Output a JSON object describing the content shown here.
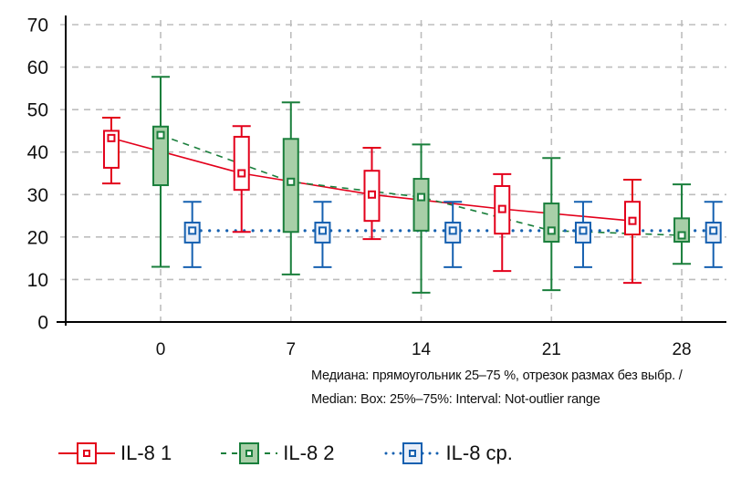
{
  "chart_data": {
    "type": "boxplot",
    "title": "",
    "xlabel": "",
    "ylabel": "",
    "ylim": [
      0,
      70
    ],
    "yticks": [
      0,
      10,
      20,
      30,
      40,
      50,
      60,
      70
    ],
    "xticks": [
      0,
      7,
      14,
      21,
      28
    ],
    "x_range": [
      -5.1,
      30.4
    ],
    "grid": true,
    "legend_position": "bottom",
    "note_lines": [
      "Медиана: прямоугольник 25–75 %, отрезок размах без выбр. /",
      "Median: Box: 25%–75%: Interval: Not-outlier range"
    ],
    "series": [
      {
        "name": "IL-8 1",
        "color": "#e3001b",
        "fill": "#ffffff",
        "line_style": "solid",
        "x_offset": -2.65,
        "groups": [
          0,
          7,
          14,
          21,
          28
        ],
        "boxes": [
          {
            "x": 0,
            "whisker_low": 32.6,
            "q1": 36.3,
            "median": 43.3,
            "q3": 45.0,
            "whisker_high": 48.1
          },
          {
            "x": 7,
            "whisker_low": 21.2,
            "q1": 31.1,
            "median": 35.0,
            "q3": 43.6,
            "whisker_high": 46.1
          },
          {
            "x": 14,
            "whisker_low": 19.5,
            "q1": 23.8,
            "median": 30.0,
            "q3": 35.6,
            "whisker_high": 41.0
          },
          {
            "x": 21,
            "whisker_low": 12.0,
            "q1": 20.8,
            "median": 26.6,
            "q3": 32.0,
            "whisker_high": 34.8
          },
          {
            "x": 28,
            "whisker_low": 9.2,
            "q1": 20.6,
            "median": 23.8,
            "q3": 28.3,
            "whisker_high": 33.5
          }
        ]
      },
      {
        "name": "IL-8 2",
        "color": "#1a7f3c",
        "fill": "#a8cfa8",
        "line_style": "dashed",
        "x_offset": 0,
        "groups": [
          0,
          7,
          14,
          21,
          28
        ],
        "boxes": [
          {
            "x": 0,
            "whisker_low": 13.0,
            "q1": 32.2,
            "median": 44.0,
            "q3": 46.0,
            "whisker_high": 57.7
          },
          {
            "x": 7,
            "whisker_low": 11.2,
            "q1": 21.2,
            "median": 33.0,
            "q3": 43.1,
            "whisker_high": 51.7
          },
          {
            "x": 14,
            "whisker_low": 6.9,
            "q1": 21.5,
            "median": 29.4,
            "q3": 33.7,
            "whisker_high": 41.8
          },
          {
            "x": 21,
            "whisker_low": 7.5,
            "q1": 18.9,
            "median": 21.5,
            "q3": 27.9,
            "whisker_high": 38.6
          },
          {
            "x": 28,
            "whisker_low": 13.7,
            "q1": 18.9,
            "median": 20.4,
            "q3": 24.4,
            "whisker_high": 32.4
          }
        ]
      },
      {
        "name": "IL-8 ср.",
        "color": "#1560b0",
        "fill": "#e8eef8",
        "line_style": "dotted",
        "x_offset": 1.7,
        "groups": [
          0,
          7,
          14,
          21,
          28
        ],
        "boxes": [
          {
            "x": 0,
            "whisker_low": 12.9,
            "q1": 18.7,
            "median": 21.5,
            "q3": 23.4,
            "whisker_high": 28.3
          },
          {
            "x": 7,
            "whisker_low": 12.9,
            "q1": 18.7,
            "median": 21.5,
            "q3": 23.4,
            "whisker_high": 28.3
          },
          {
            "x": 14,
            "whisker_low": 12.9,
            "q1": 18.7,
            "median": 21.5,
            "q3": 23.4,
            "whisker_high": 28.3
          },
          {
            "x": 21,
            "whisker_low": 12.9,
            "q1": 18.7,
            "median": 21.5,
            "q3": 23.4,
            "whisker_high": 28.3
          },
          {
            "x": 28,
            "whisker_low": 12.9,
            "q1": 18.7,
            "median": 21.5,
            "q3": 23.4,
            "whisker_high": 28.3
          }
        ]
      }
    ]
  }
}
